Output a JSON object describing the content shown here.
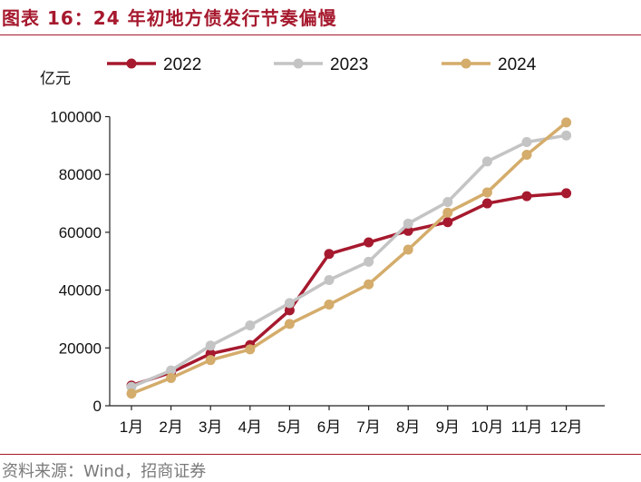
{
  "title": "图表 16：24 年初地方债发行节奏偏慢",
  "source": "资料来源：Wind，招商证券",
  "chart_data": {
    "type": "line",
    "ylabel": "亿元",
    "ylim": [
      0,
      100000
    ],
    "yticks": [
      0,
      20000,
      40000,
      60000,
      80000,
      100000
    ],
    "ytick_labels": [
      "0",
      "20000",
      "40000",
      "60000",
      "80000",
      "100000"
    ],
    "categories": [
      "1月",
      "2月",
      "3月",
      "4月",
      "5月",
      "6月",
      "7月",
      "8月",
      "9月",
      "10月",
      "11月",
      "12月"
    ],
    "legend_position": "top",
    "grid": false,
    "series": [
      {
        "name": "2022",
        "color": "#a6192e",
        "values": [
          7000,
          11500,
          18000,
          21000,
          33000,
          52500,
          56500,
          60500,
          63500,
          70000,
          72500,
          73500
        ]
      },
      {
        "name": "2023",
        "color": "#c4c4c4",
        "values": [
          6500,
          12200,
          20800,
          27800,
          35500,
          43500,
          49800,
          63000,
          70500,
          84500,
          91200,
          93500
        ]
      },
      {
        "name": "2024",
        "color": "#d4ac6b",
        "values": [
          4200,
          9600,
          15800,
          19500,
          28300,
          35000,
          42000,
          54000,
          66800,
          73800,
          86800,
          98000
        ]
      }
    ]
  }
}
